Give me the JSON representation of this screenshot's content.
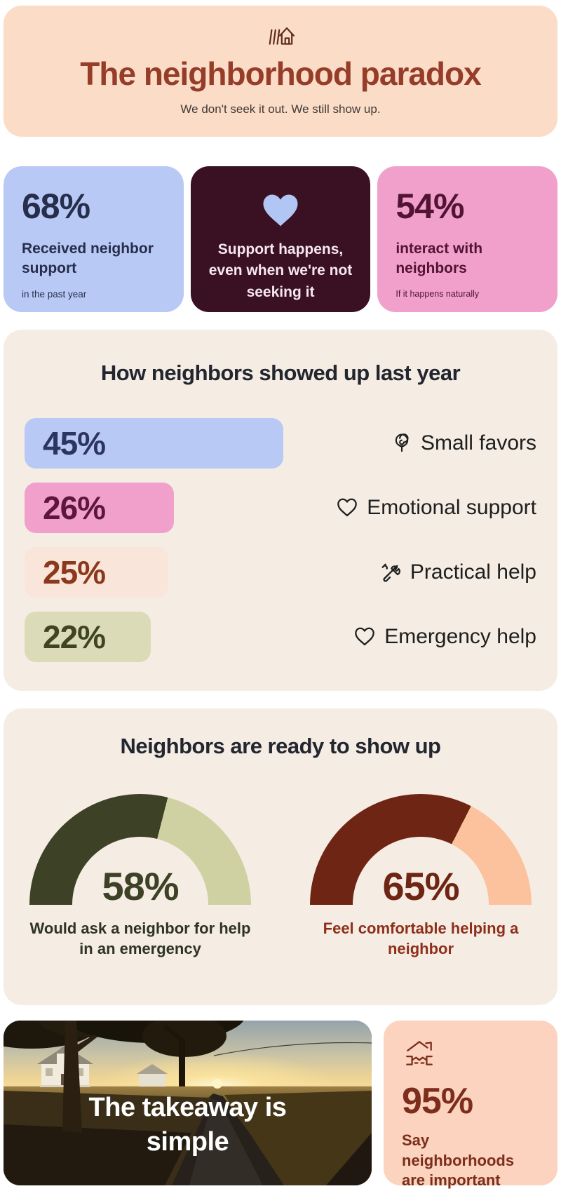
{
  "header": {
    "icon": "house-lines-icon",
    "title": "The neighborhood paradox",
    "subtitle": "We don't seek it out. We still show up.",
    "bg": "#FBDCC7",
    "title_color": "#963D2A",
    "subtitle_color": "#403A36"
  },
  "stat_cards": [
    {
      "value": "68%",
      "label": "Received neighbor support",
      "note": "in the past year",
      "bg": "#B9C9F5",
      "text_color": "#262E4C"
    },
    {
      "icon": "heart-icon",
      "message": "Support happens, even when we're not seeking it",
      "bg": "#3A1123",
      "text_color": "#F7E8EE",
      "icon_color": "#B2C6F3"
    },
    {
      "value": "54%",
      "label": "interact with neighbors",
      "note": "If it happens naturally",
      "bg": "#F0A0CB",
      "text_color": "#521433"
    }
  ],
  "chart_data": [
    {
      "type": "bar",
      "orientation": "horizontal",
      "title": "How neighbors showed up last year",
      "unit": "%",
      "xlim": [
        0,
        100
      ],
      "rows": [
        {
          "label": "Small favors",
          "icon": "rose-icon",
          "value": 45,
          "display": "45%",
          "bar_color": "#B9C9F5",
          "value_color": "#2B3560"
        },
        {
          "label": "Emotional support",
          "icon": "heart-outline-icon",
          "value": 26,
          "display": "26%",
          "bar_color": "#F0A0CB",
          "value_color": "#5D163D"
        },
        {
          "label": "Practical help",
          "icon": "tools-icon",
          "value": 25,
          "display": "25%",
          "bar_color": "#F9E5D9",
          "value_color": "#8C381D"
        },
        {
          "label": "Emergency help",
          "icon": "heart-outline-icon",
          "value": 22,
          "display": "22%",
          "bar_color": "#DCDBB7",
          "value_color": "#3F4423"
        }
      ],
      "label_color": "#1E1E1E",
      "section_bg": "#F5EDE4",
      "title_color": "#23262F"
    },
    {
      "type": "gauge",
      "shape": "half-donut",
      "title": "Neighbors are ready to show up",
      "unit": "%",
      "range": [
        0,
        100
      ],
      "gauges": [
        {
          "value": 58,
          "display": "58%",
          "caption": "Would ask a neighbor for help in an emergency",
          "color_filled": "#3D4125",
          "color_rest": "#CFD1A3",
          "value_color": "#3D4125",
          "caption_color": "#2E3322"
        },
        {
          "value": 65,
          "display": "65%",
          "caption": "Feel comfortable helping a neighbor",
          "color_filled": "#6F2513",
          "color_rest": "#FCC29D",
          "value_color": "#6F2513",
          "caption_color": "#8E2F1B"
        }
      ],
      "section_bg": "#F5EDE4",
      "title_color": "#23262F"
    }
  ],
  "takeaway": {
    "title": "The takeaway is simple",
    "text_color": "#FFFFFF"
  },
  "highlight_card": {
    "icon": "house-handshake-icon",
    "value": "95%",
    "label": "Say neighborhoods are important",
    "bg": "#FBD3BE",
    "text_color": "#7C2D1C"
  }
}
